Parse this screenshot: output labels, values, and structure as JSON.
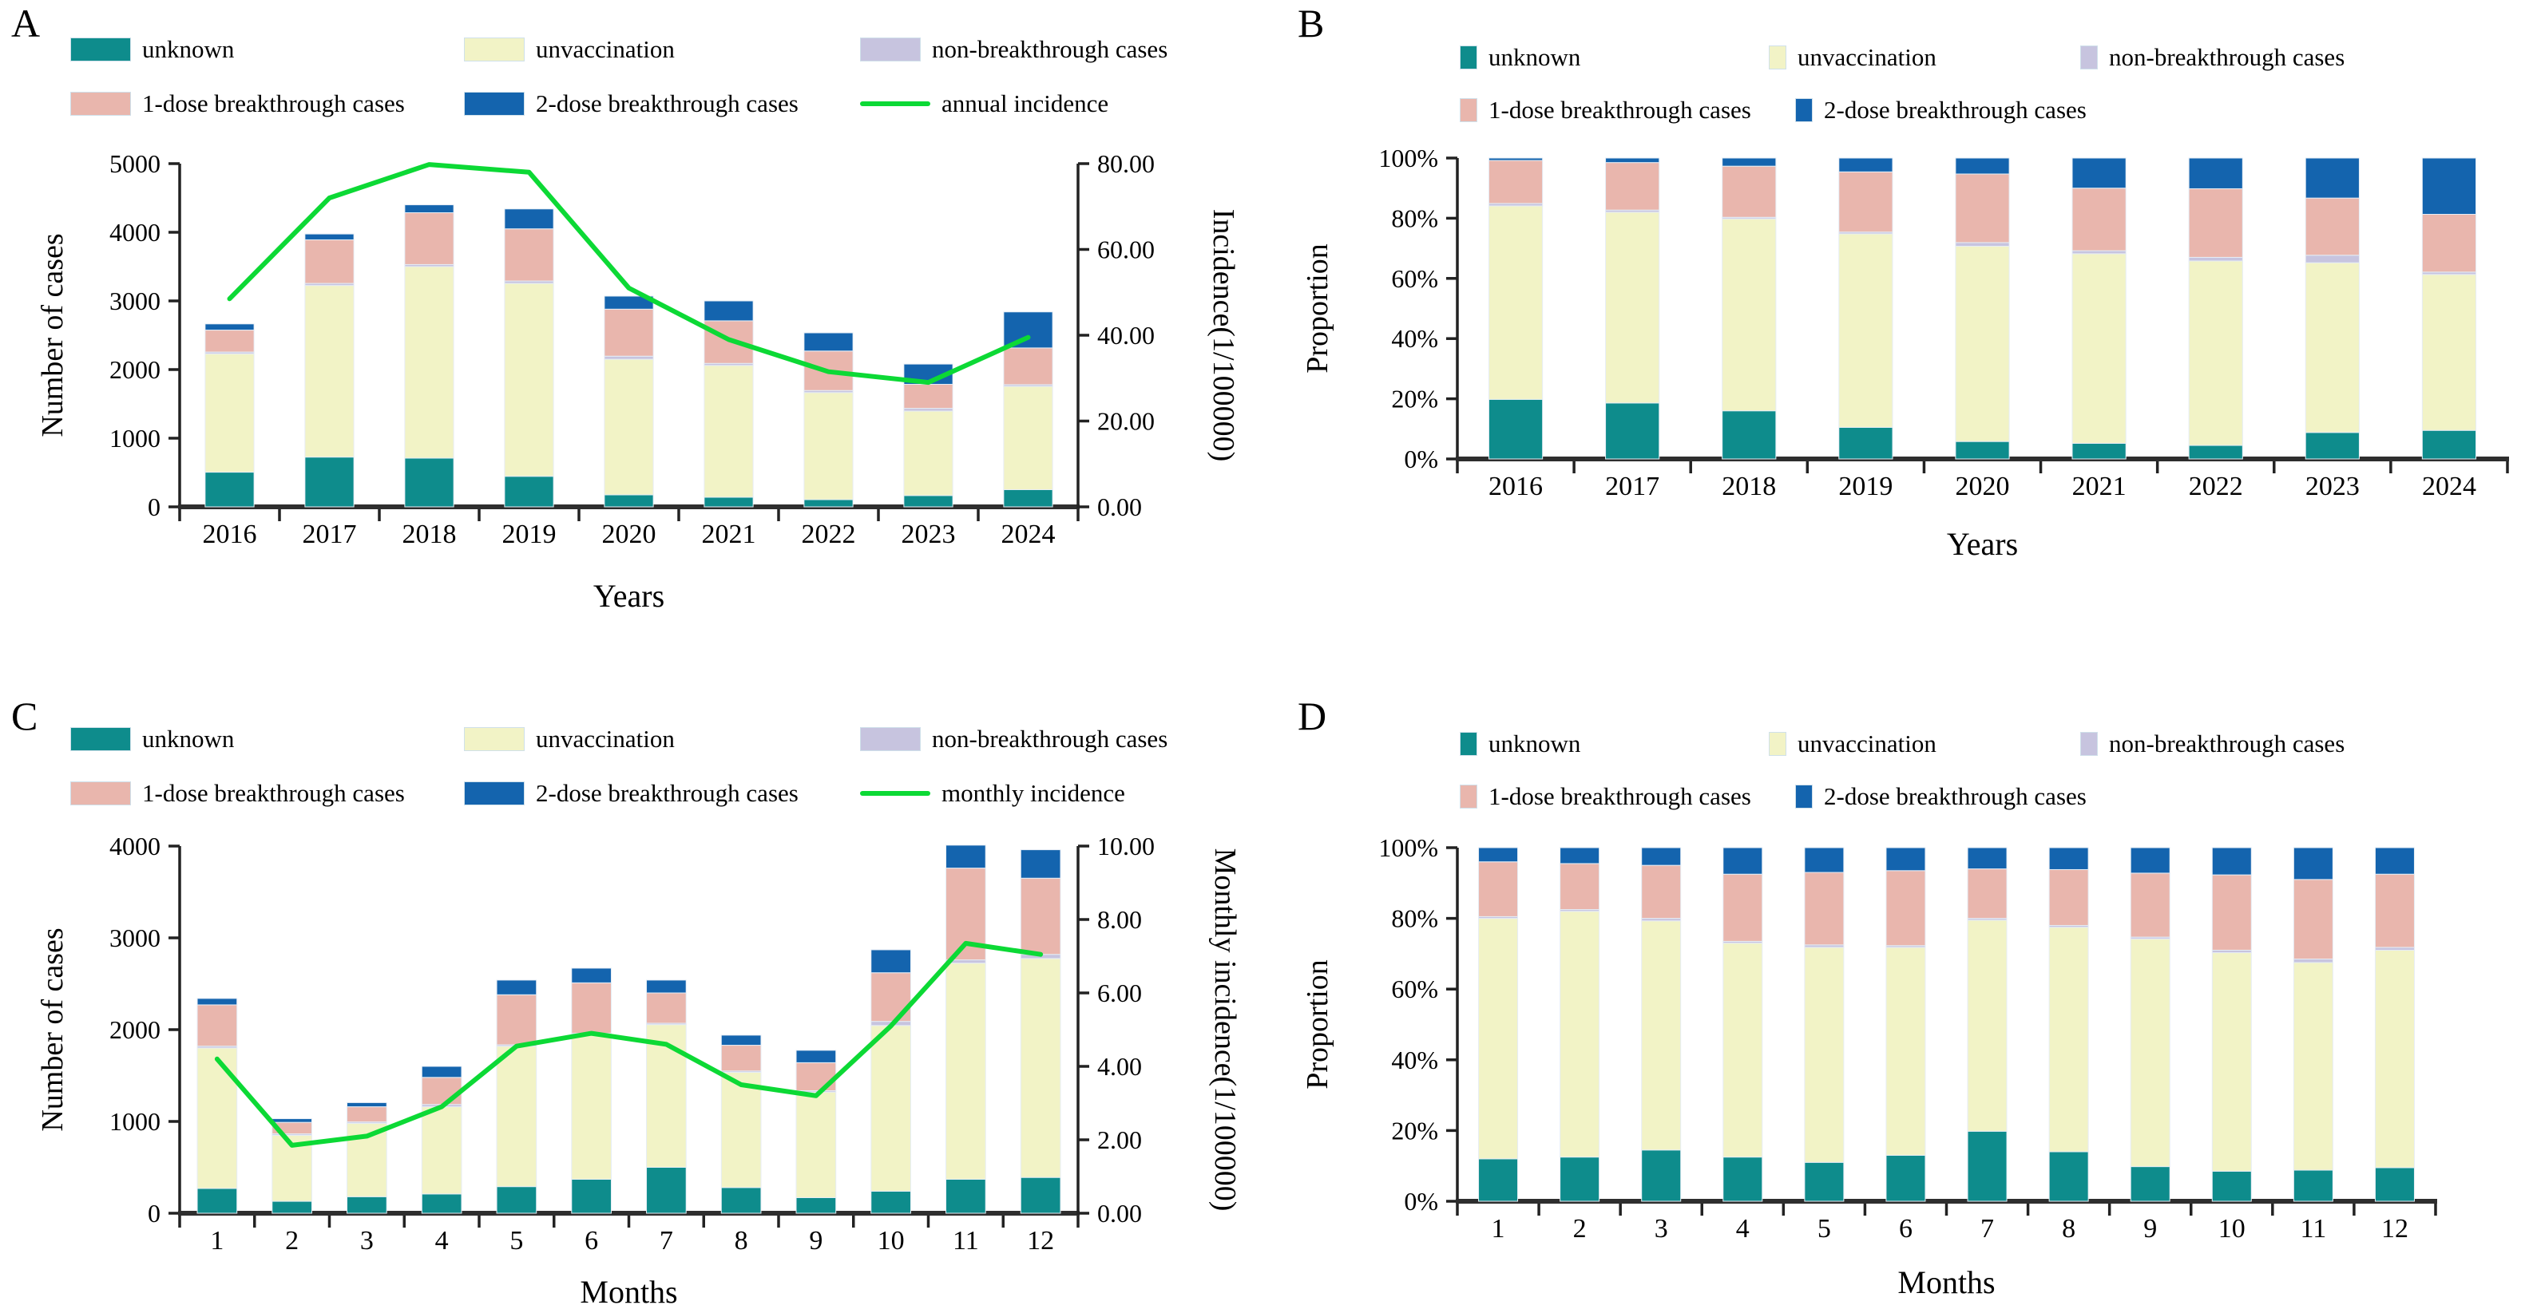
{
  "figure_title": "",
  "colors": {
    "unknown": "#0E8C8C",
    "unvaccination": "#F2F3C6",
    "non-breakthrough cases": "#C7C4DF",
    "1-dose breakthrough cases": "#E9B6AD",
    "2-dose breakthrough cases": "#1464AE",
    "incidence_line": "#0CD935",
    "axis": "#222222",
    "text": "#000000"
  },
  "chart_data": [
    {
      "panel": "A",
      "type": "bar",
      "variant": "stacked-bar-line",
      "stacked": true,
      "grid": false,
      "legend_position": "top",
      "categories": [
        "2016",
        "2017",
        "2018",
        "2019",
        "2020",
        "2021",
        "2022",
        "2023",
        "2024"
      ],
      "series": [
        {
          "name": "unknown",
          "values": [
            505,
            725,
            710,
            445,
            175,
            140,
            105,
            165,
            250
          ]
        },
        {
          "name": "unvaccination",
          "values": [
            1725,
            2500,
            2790,
            2810,
            1975,
            1920,
            1560,
            1230,
            1505
          ]
        },
        {
          "name": "non-breakthrough cases",
          "values": [
            25,
            30,
            30,
            35,
            45,
            30,
            30,
            40,
            25
          ]
        },
        {
          "name": "1-dose breakthrough cases",
          "values": [
            320,
            635,
            755,
            760,
            685,
            620,
            575,
            350,
            535
          ]
        },
        {
          "name": "2-dose breakthrough cases",
          "values": [
            90,
            85,
            115,
            290,
            190,
            290,
            265,
            295,
            525
          ]
        }
      ],
      "line": {
        "name": "annual incidence",
        "axis": "right",
        "values": [
          48.5,
          72,
          79.8,
          78,
          51,
          39,
          31.5,
          29,
          39.5
        ]
      },
      "xlabel": "Years",
      "ylabel": "Number of cases",
      "ylabel_right": "Incidence(1/100000)",
      "ylim": [
        0,
        5000
      ],
      "yticks": [
        {
          "v": 0,
          "label": "0"
        },
        {
          "v": 1000,
          "label": "1000"
        },
        {
          "v": 2000,
          "label": "2000"
        },
        {
          "v": 3000,
          "label": "3000"
        },
        {
          "v": 4000,
          "label": "4000"
        },
        {
          "v": 5000,
          "label": "5000"
        }
      ],
      "ylim_right": [
        0,
        80
      ],
      "yticks_right": [
        {
          "v": 0,
          "label": "0.00"
        },
        {
          "v": 20,
          "label": "20.00"
        },
        {
          "v": 40,
          "label": "40.00"
        },
        {
          "v": 60,
          "label": "60.00"
        },
        {
          "v": 80,
          "label": "80.00"
        }
      ]
    },
    {
      "panel": "B",
      "type": "bar",
      "variant": "stacked-bar-percent",
      "stacked": true,
      "grid": false,
      "legend_position": "top",
      "categories": [
        "2016",
        "2017",
        "2018",
        "2019",
        "2020",
        "2021",
        "2022",
        "2023",
        "2024"
      ],
      "series": [
        {
          "name": "unknown",
          "values": [
            19.8,
            18.6,
            16.0,
            10.5,
            5.8,
            5.2,
            4.5,
            8.8,
            9.5
          ]
        },
        {
          "name": "unvaccination",
          "values": [
            64.3,
            63.4,
            63.8,
            64.3,
            64.9,
            63.0,
            61.3,
            56.4,
            51.8
          ]
        },
        {
          "name": "non-breakthrough cases",
          "values": [
            0.8,
            0.7,
            0.5,
            0.6,
            1.2,
            1.0,
            1.2,
            2.5,
            0.8
          ]
        },
        {
          "name": "1-dose breakthrough cases",
          "values": [
            14.3,
            15.8,
            17.0,
            20.0,
            22.8,
            20.8,
            22.8,
            19.0,
            19.2
          ]
        },
        {
          "name": "2-dose breakthrough cases",
          "values": [
            0.8,
            1.5,
            2.7,
            4.6,
            5.3,
            10.0,
            10.2,
            13.3,
            18.7
          ]
        }
      ],
      "xlabel": "Years",
      "ylabel": "Proportion",
      "ylim": [
        0,
        100
      ],
      "yticks": [
        {
          "v": 0,
          "label": "0%"
        },
        {
          "v": 20,
          "label": "20%"
        },
        {
          "v": 40,
          "label": "40%"
        },
        {
          "v": 60,
          "label": "60%"
        },
        {
          "v": 80,
          "label": "80%"
        },
        {
          "v": 100,
          "label": "100%"
        }
      ]
    },
    {
      "panel": "C",
      "type": "bar",
      "variant": "stacked-bar-line",
      "stacked": true,
      "grid": false,
      "legend_position": "top",
      "categories": [
        "1",
        "2",
        "3",
        "4",
        "5",
        "6",
        "7",
        "8",
        "9",
        "10",
        "11",
        "12"
      ],
      "series": [
        {
          "name": "unknown",
          "values": [
            270,
            130,
            180,
            210,
            290,
            370,
            500,
            280,
            170,
            240,
            370,
            390
          ]
        },
        {
          "name": "unvaccination",
          "values": [
            1530,
            720,
            800,
            950,
            1530,
            1575,
            1555,
            1255,
            1150,
            1805,
            2355,
            2385
          ]
        },
        {
          "name": "non-breakthrough cases",
          "values": [
            20,
            15,
            15,
            25,
            15,
            15,
            15,
            15,
            15,
            45,
            35,
            45
          ]
        },
        {
          "name": "1-dose breakthrough cases",
          "values": [
            450,
            125,
            165,
            295,
            545,
            550,
            330,
            280,
            305,
            530,
            1000,
            830
          ]
        },
        {
          "name": "2-dose breakthrough cases",
          "values": [
            70,
            40,
            45,
            120,
            160,
            160,
            140,
            110,
            135,
            250,
            250,
            310
          ]
        }
      ],
      "line": {
        "name": "monthly incidence",
        "axis": "right",
        "values": [
          4.2,
          1.85,
          2.1,
          2.9,
          4.55,
          4.9,
          4.6,
          3.5,
          3.2,
          5.1,
          7.35,
          7.05
        ]
      },
      "xlabel": "Months",
      "ylabel": "Number of cases",
      "ylabel_right": "Monthly incidence(1/100000)",
      "ylim": [
        0,
        4000
      ],
      "yticks": [
        {
          "v": 0,
          "label": "0"
        },
        {
          "v": 1000,
          "label": "1000"
        },
        {
          "v": 2000,
          "label": "2000"
        },
        {
          "v": 3000,
          "label": "3000"
        },
        {
          "v": 4000,
          "label": "4000"
        }
      ],
      "ylim_right": [
        0,
        10
      ],
      "yticks_right": [
        {
          "v": 0,
          "label": "0.00"
        },
        {
          "v": 2,
          "label": "2.00"
        },
        {
          "v": 4,
          "label": "4.00"
        },
        {
          "v": 6,
          "label": "6.00"
        },
        {
          "v": 8,
          "label": "8.00"
        },
        {
          "v": 10,
          "label": "10.00"
        }
      ]
    },
    {
      "panel": "D",
      "type": "bar",
      "variant": "stacked-bar-percent",
      "stacked": true,
      "grid": false,
      "legend_position": "top",
      "categories": [
        "1",
        "2",
        "3",
        "4",
        "5",
        "6",
        "7",
        "8",
        "9",
        "10",
        "11",
        "12"
      ],
      "series": [
        {
          "name": "unknown",
          "values": [
            12.0,
            12.5,
            14.5,
            12.5,
            11.0,
            13.0,
            19.8,
            14.0,
            9.8,
            8.5,
            8.8,
            9.5
          ]
        },
        {
          "name": "unvaccination",
          "values": [
            68.0,
            69.5,
            64.8,
            60.5,
            60.8,
            58.8,
            59.7,
            63.5,
            64.4,
            61.8,
            58.7,
            61.5
          ]
        },
        {
          "name": "non-breakthrough cases",
          "values": [
            0.5,
            0.5,
            0.7,
            0.5,
            0.7,
            0.5,
            0.5,
            0.5,
            0.5,
            0.7,
            1.0,
            0.8
          ]
        },
        {
          "name": "1-dose breakthrough cases",
          "values": [
            15.5,
            13.0,
            15.0,
            19.0,
            20.5,
            21.2,
            14.0,
            15.8,
            18.1,
            21.3,
            22.5,
            20.7
          ]
        },
        {
          "name": "2-dose breakthrough cases",
          "values": [
            4.0,
            4.5,
            5.0,
            7.5,
            7.0,
            6.5,
            6.0,
            6.2,
            7.2,
            7.7,
            9.0,
            7.5
          ]
        }
      ],
      "xlabel": "Months",
      "ylabel": "Proportion",
      "ylim": [
        0,
        100
      ],
      "yticks": [
        {
          "v": 0,
          "label": "0%"
        },
        {
          "v": 20,
          "label": "20%"
        },
        {
          "v": 40,
          "label": "40%"
        },
        {
          "v": 60,
          "label": "60%"
        },
        {
          "v": 80,
          "label": "80%"
        },
        {
          "v": 100,
          "label": "100%"
        }
      ]
    }
  ]
}
